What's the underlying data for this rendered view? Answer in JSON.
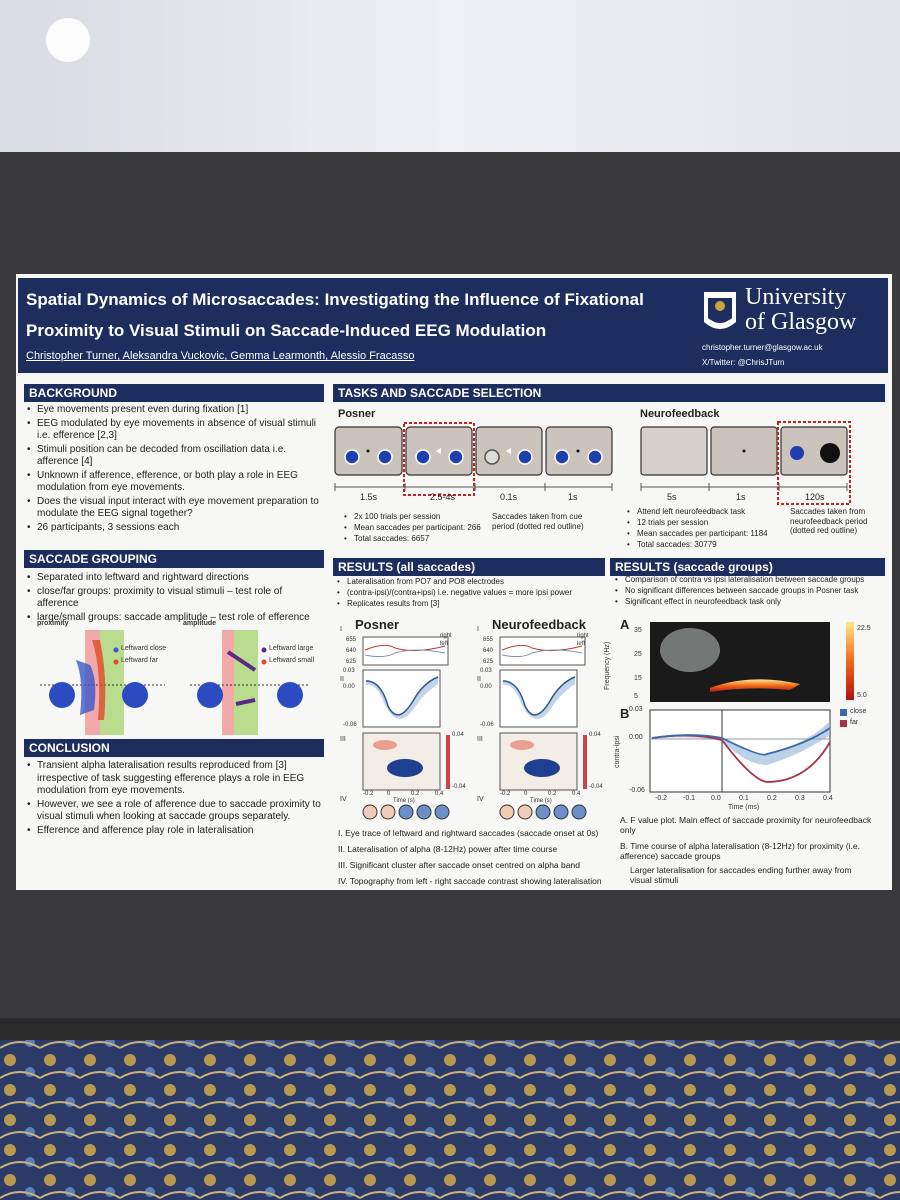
{
  "header": {
    "title": [
      "Spatial Dynamics of Microsaccades: Investigating the Influence of Fixational",
      "Proximity to Visual Stimuli on Saccade-Induced EEG Modulation"
    ],
    "authors": "Christopher Turner, Aleksandra Vuckovic, Gemma Learmonth, Alessio Fracasso",
    "university": [
      "University",
      "of Glasgow"
    ],
    "email": "christopher.turner@glasgow.ac.uk",
    "twitter": "X/Twitter: @ChrisJTurn"
  },
  "background": {
    "heading": "BACKGROUND",
    "items": [
      "Eye movements present even during fixation [1]",
      "EEG modulated by eye movements in absence of visual stimuli i.e. efference [2,3]",
      "Stimuli position can be decoded from oscillation data i.e. afference [4]",
      "Unknown if afference, efference, or both play a role in EEG modulation from eye movements.",
      "Does the visual input interact with eye movement preparation to modulate the EEG signal together?",
      "26 participants, 3 sessions each"
    ]
  },
  "saccade_grouping": {
    "heading": "SACCADE GROUPING",
    "items": [
      "Separated into leftward and rightward directions",
      "close/far groups: proximity to visual stimuli – test role of afference",
      "large/small groups: saccade amplitude – test role of efference"
    ],
    "figure": {
      "proximity": "proximity",
      "amplitude": "amplitude",
      "proximity_legend": [
        "Leftward close",
        "Leftward far"
      ],
      "amplitude_legend": [
        "Leftward large",
        "Leftward small"
      ]
    }
  },
  "conclusion": {
    "heading": "CONCLUSION",
    "items": [
      "Transient alpha lateralisation results reproduced from [3] irrespective of task suggesting efference plays a role in EEG modulation from eye movements.",
      "However, we see a role of afference due to saccade proximity to visual stimuli when looking at saccade groups separately.",
      "Efference and afference play role in lateralisation"
    ]
  },
  "tasks": {
    "heading": "TASKS AND SACCADE SELECTION",
    "posner": {
      "label": "Posner",
      "durations": [
        "1.5s",
        "2.5-4s",
        "0.1s",
        "1s"
      ],
      "notes": [
        "2x 100 trials per session",
        "Mean saccades per participant: 266",
        "Total saccades: 6657"
      ],
      "side_note": "Saccades taken from cue period (dotted red outline)"
    },
    "neurofeedback": {
      "label": "Neurofeedback",
      "durations": [
        "5s",
        "1s",
        "120s"
      ],
      "notes": [
        "Attend left neurofeedback task",
        "12 trials per session",
        "Mean saccades per participant: 1184",
        "Total saccades: 30779"
      ],
      "side_note": "Saccades taken from neurofeedback period (dotted red outline)"
    }
  },
  "results_all": {
    "heading": "RESULTS (all saccades)",
    "items": [
      "Lateralisation from PO7 and PO8 electrodes",
      "(contra-ipsi)/(contra+ipsi) i.e. negative values = more ipsi power",
      "Replicates results from [3]"
    ],
    "panels": [
      "Posner",
      "Neurofeedback"
    ],
    "rows": [
      "I",
      "II",
      "III",
      "IV"
    ],
    "trace_legend": [
      "right",
      "left"
    ],
    "trace_ticks": [
      "655",
      "640",
      "625"
    ],
    "lat_ticks": [
      "0.03",
      "0.00",
      "-0.06"
    ],
    "time_ticks": [
      "-0.2",
      "0",
      "0.2",
      "0.4"
    ],
    "time_label": "Time (s)",
    "tf_scale": [
      "0.04",
      "-0.04"
    ],
    "captions": [
      "I.   Eye trace of leftward and rightward saccades (saccade onset at 0s)",
      "II.  Lateralisation of alpha (8-12Hz) power after time course",
      "III. Significant cluster after saccade onset centred on alpha band",
      "IV.  Topography from left - right saccade contrast showing lateralisation"
    ]
  },
  "results_groups": {
    "heading": "RESULTS (saccade groups)",
    "items": [
      "Comparison of contra vs ipsi lateralisation between saccade groups",
      "No significant differences between saccade groups in Posner task",
      "Significant effect in neurofeedback task only"
    ],
    "panel_a": {
      "label": "A",
      "y_label": "Frequency (Hz)",
      "y_ticks": [
        "35",
        "25",
        "15",
        "5"
      ],
      "scale": [
        "22.5",
        "5.0"
      ]
    },
    "panel_b": {
      "label": "B",
      "y_label": "contra-ipsi",
      "y_ticks": [
        "0.03",
        "0.00",
        "-0.06"
      ],
      "x_ticks": [
        "-0.2",
        "-0.1",
        "0.0",
        "0.1",
        "0.2",
        "0.3",
        "0.4"
      ],
      "x_label": "Time (ms)",
      "legend": [
        "close",
        "far"
      ]
    },
    "captions": [
      "A.  F value plot. Main effect of saccade proximity for neurofeedback only",
      "B.  Time course of alpha lateralisation (8-12Hz) for proximity (i.e. afference) saccade groups"
    ],
    "note": "Larger lateralisation for saccades ending further away from visual stimuli"
  }
}
